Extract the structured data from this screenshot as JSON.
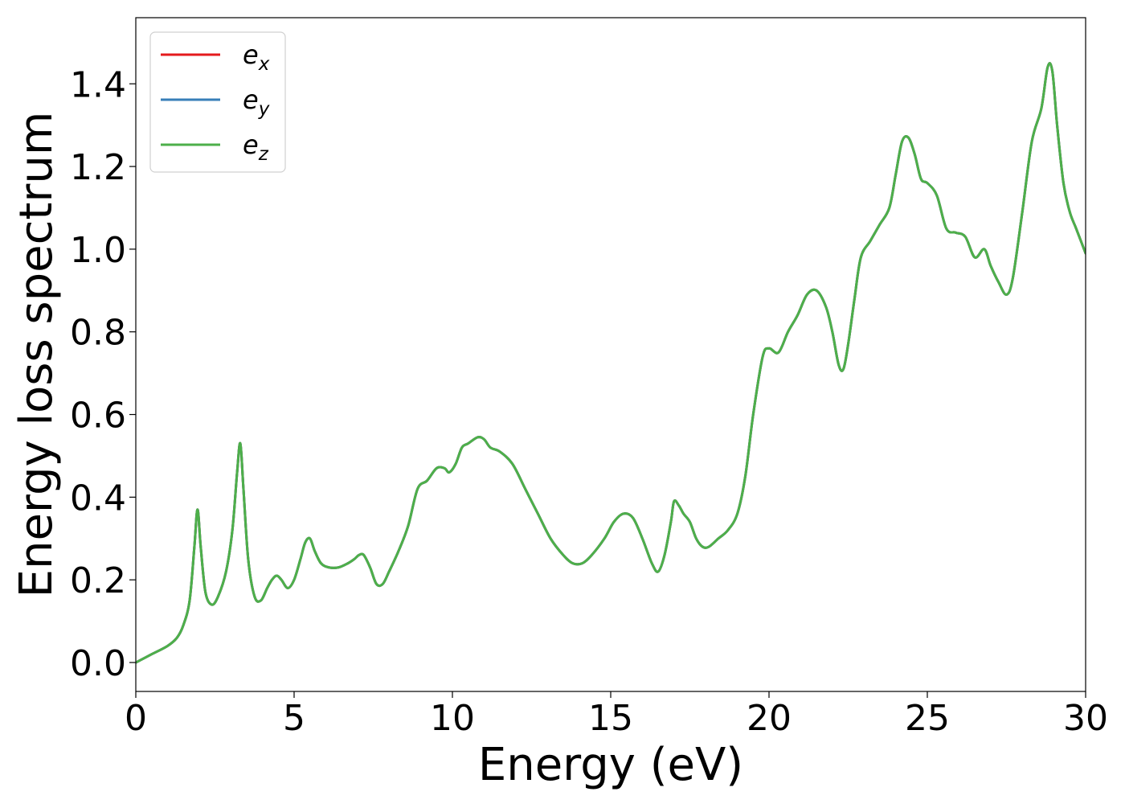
{
  "chart_data": {
    "type": "line",
    "title": "",
    "xlabel": "Energy (eV)",
    "ylabel": "Energy loss spectrum",
    "xlim": [
      0,
      30
    ],
    "ylim": [
      -0.07,
      1.56
    ],
    "xticks": [
      0,
      5,
      10,
      15,
      20,
      25,
      30
    ],
    "xtick_labels": [
      "0",
      "5",
      "10",
      "15",
      "20",
      "25",
      "30"
    ],
    "yticks": [
      0.0,
      0.2,
      0.4,
      0.6,
      0.8,
      1.0,
      1.2,
      1.4
    ],
    "ytick_labels": [
      "0.0",
      "0.2",
      "0.4",
      "0.6",
      "0.8",
      "1.0",
      "1.2",
      "1.4"
    ],
    "grid": false,
    "legend_position": "top-left",
    "series": [
      {
        "name": "e_x",
        "label_main": "e",
        "label_sub": "x",
        "color": "#e41a1c"
      },
      {
        "name": "e_y",
        "label_main": "e",
        "label_sub": "y",
        "color": "#377eb8"
      },
      {
        "name": "e_z",
        "label_main": "e",
        "label_sub": "z",
        "color": "#4daf4a"
      }
    ],
    "x": [
      0,
      0.5,
      1.0,
      1.3,
      1.5,
      1.7,
      1.85,
      1.95,
      2.05,
      2.2,
      2.4,
      2.6,
      2.85,
      3.05,
      3.2,
      3.3,
      3.4,
      3.55,
      3.75,
      3.95,
      4.15,
      4.3,
      4.45,
      4.6,
      4.8,
      5.0,
      5.2,
      5.35,
      5.5,
      5.65,
      5.85,
      6.1,
      6.4,
      6.7,
      6.9,
      7.05,
      7.2,
      7.4,
      7.6,
      7.8,
      8.0,
      8.3,
      8.6,
      8.9,
      9.2,
      9.5,
      9.75,
      9.9,
      10.1,
      10.3,
      10.5,
      10.8,
      11.0,
      11.2,
      11.5,
      11.9,
      12.3,
      12.7,
      13.1,
      13.5,
      13.8,
      14.1,
      14.4,
      14.8,
      15.1,
      15.4,
      15.7,
      16.0,
      16.3,
      16.5,
      16.7,
      16.9,
      17.0,
      17.15,
      17.3,
      17.5,
      17.7,
      17.9,
      18.1,
      18.4,
      18.7,
      19.0,
      19.25,
      19.5,
      19.8,
      20.0,
      20.3,
      20.6,
      20.9,
      21.2,
      21.5,
      21.8,
      22.0,
      22.2,
      22.35,
      22.5,
      22.7,
      22.9,
      23.2,
      23.5,
      23.8,
      24.0,
      24.2,
      24.4,
      24.6,
      24.8,
      25.0,
      25.3,
      25.6,
      25.9,
      26.2,
      26.5,
      26.8,
      27.0,
      27.25,
      27.5,
      27.7,
      28.0,
      28.3,
      28.6,
      28.8,
      28.95,
      29.1,
      29.3,
      29.5,
      29.7,
      30.0
    ],
    "y": [
      0.0,
      0.02,
      0.04,
      0.06,
      0.09,
      0.15,
      0.28,
      0.37,
      0.28,
      0.17,
      0.14,
      0.16,
      0.22,
      0.32,
      0.46,
      0.53,
      0.42,
      0.25,
      0.16,
      0.15,
      0.18,
      0.2,
      0.21,
      0.2,
      0.18,
      0.2,
      0.25,
      0.29,
      0.3,
      0.27,
      0.24,
      0.23,
      0.23,
      0.24,
      0.25,
      0.26,
      0.26,
      0.23,
      0.19,
      0.19,
      0.22,
      0.27,
      0.33,
      0.42,
      0.44,
      0.47,
      0.47,
      0.46,
      0.48,
      0.52,
      0.53,
      0.545,
      0.54,
      0.52,
      0.51,
      0.48,
      0.42,
      0.36,
      0.3,
      0.26,
      0.24,
      0.24,
      0.26,
      0.3,
      0.34,
      0.36,
      0.35,
      0.3,
      0.24,
      0.22,
      0.26,
      0.34,
      0.39,
      0.38,
      0.36,
      0.34,
      0.3,
      0.28,
      0.28,
      0.3,
      0.32,
      0.36,
      0.45,
      0.6,
      0.74,
      0.76,
      0.75,
      0.8,
      0.84,
      0.89,
      0.9,
      0.86,
      0.8,
      0.72,
      0.71,
      0.77,
      0.88,
      0.98,
      1.02,
      1.06,
      1.1,
      1.18,
      1.26,
      1.27,
      1.23,
      1.17,
      1.16,
      1.13,
      1.05,
      1.04,
      1.03,
      0.98,
      1.0,
      0.96,
      0.92,
      0.89,
      0.93,
      1.09,
      1.26,
      1.34,
      1.44,
      1.43,
      1.3,
      1.16,
      1.09,
      1.05,
      0.99
    ]
  }
}
